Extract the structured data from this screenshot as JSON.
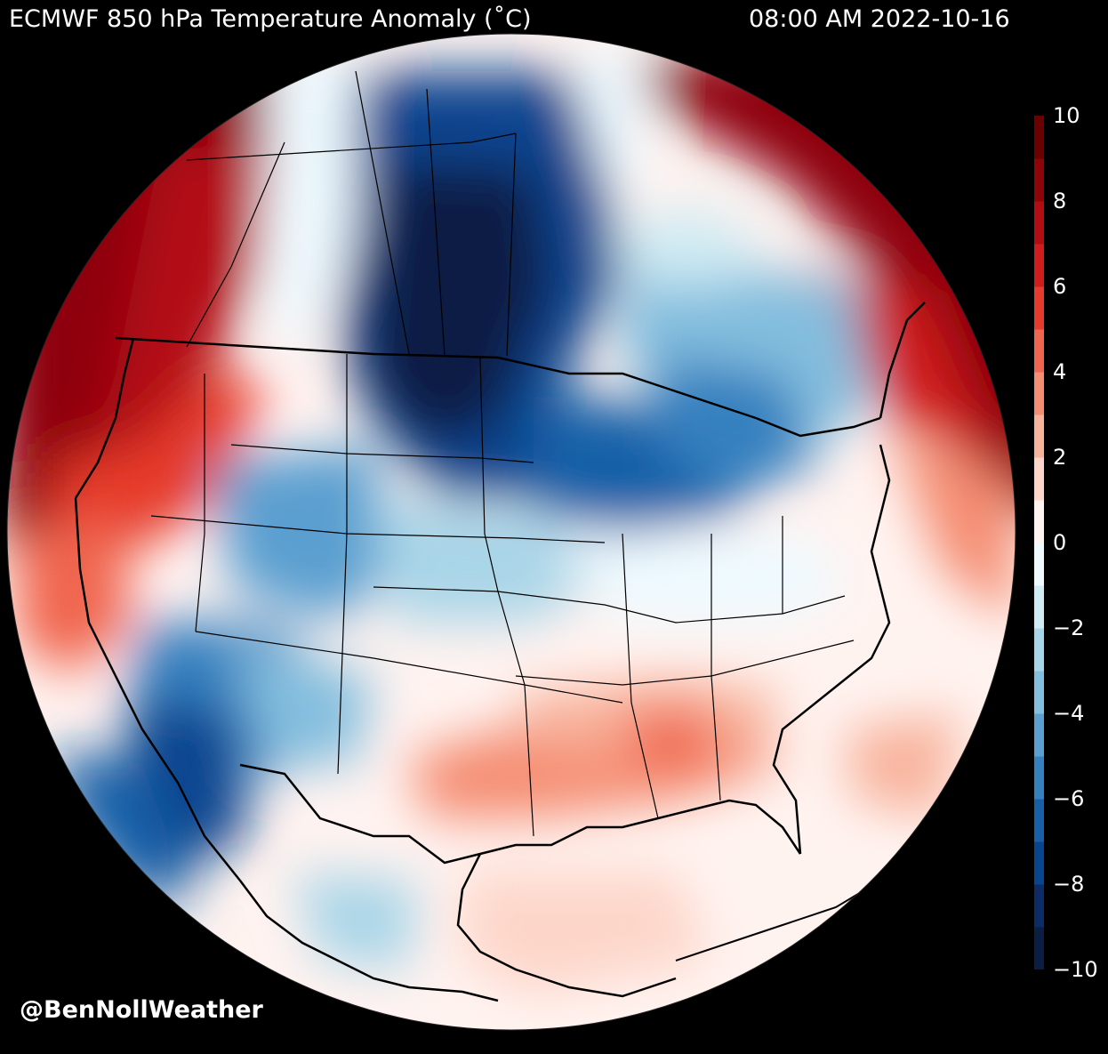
{
  "header": {
    "title": "ECMWF 850 hPa Temperature Anomaly (˚C)",
    "timestamp": "08:00 AM 2022-10-16"
  },
  "colorbar": {
    "tick_labels": [
      "10",
      "8",
      "6",
      "4",
      "2",
      "0",
      "−2",
      "−4",
      "−6",
      "−8",
      "−10"
    ],
    "min": -10,
    "max": 10,
    "colors": [
      "#0b1e44",
      "#0d2b66",
      "#08458f",
      "#1760a8",
      "#3580bf",
      "#5a9fd0",
      "#83bede",
      "#a9d5e8",
      "#cfebf3",
      "#eefaff",
      "#fff3f0",
      "#fdd6c9",
      "#f8b39c",
      "#f58d72",
      "#f0654d",
      "#e63b2c",
      "#cf1d1d",
      "#b30d14",
      "#8e0509",
      "#6b0000"
    ]
  },
  "credit": "@BenNollWeather"
}
